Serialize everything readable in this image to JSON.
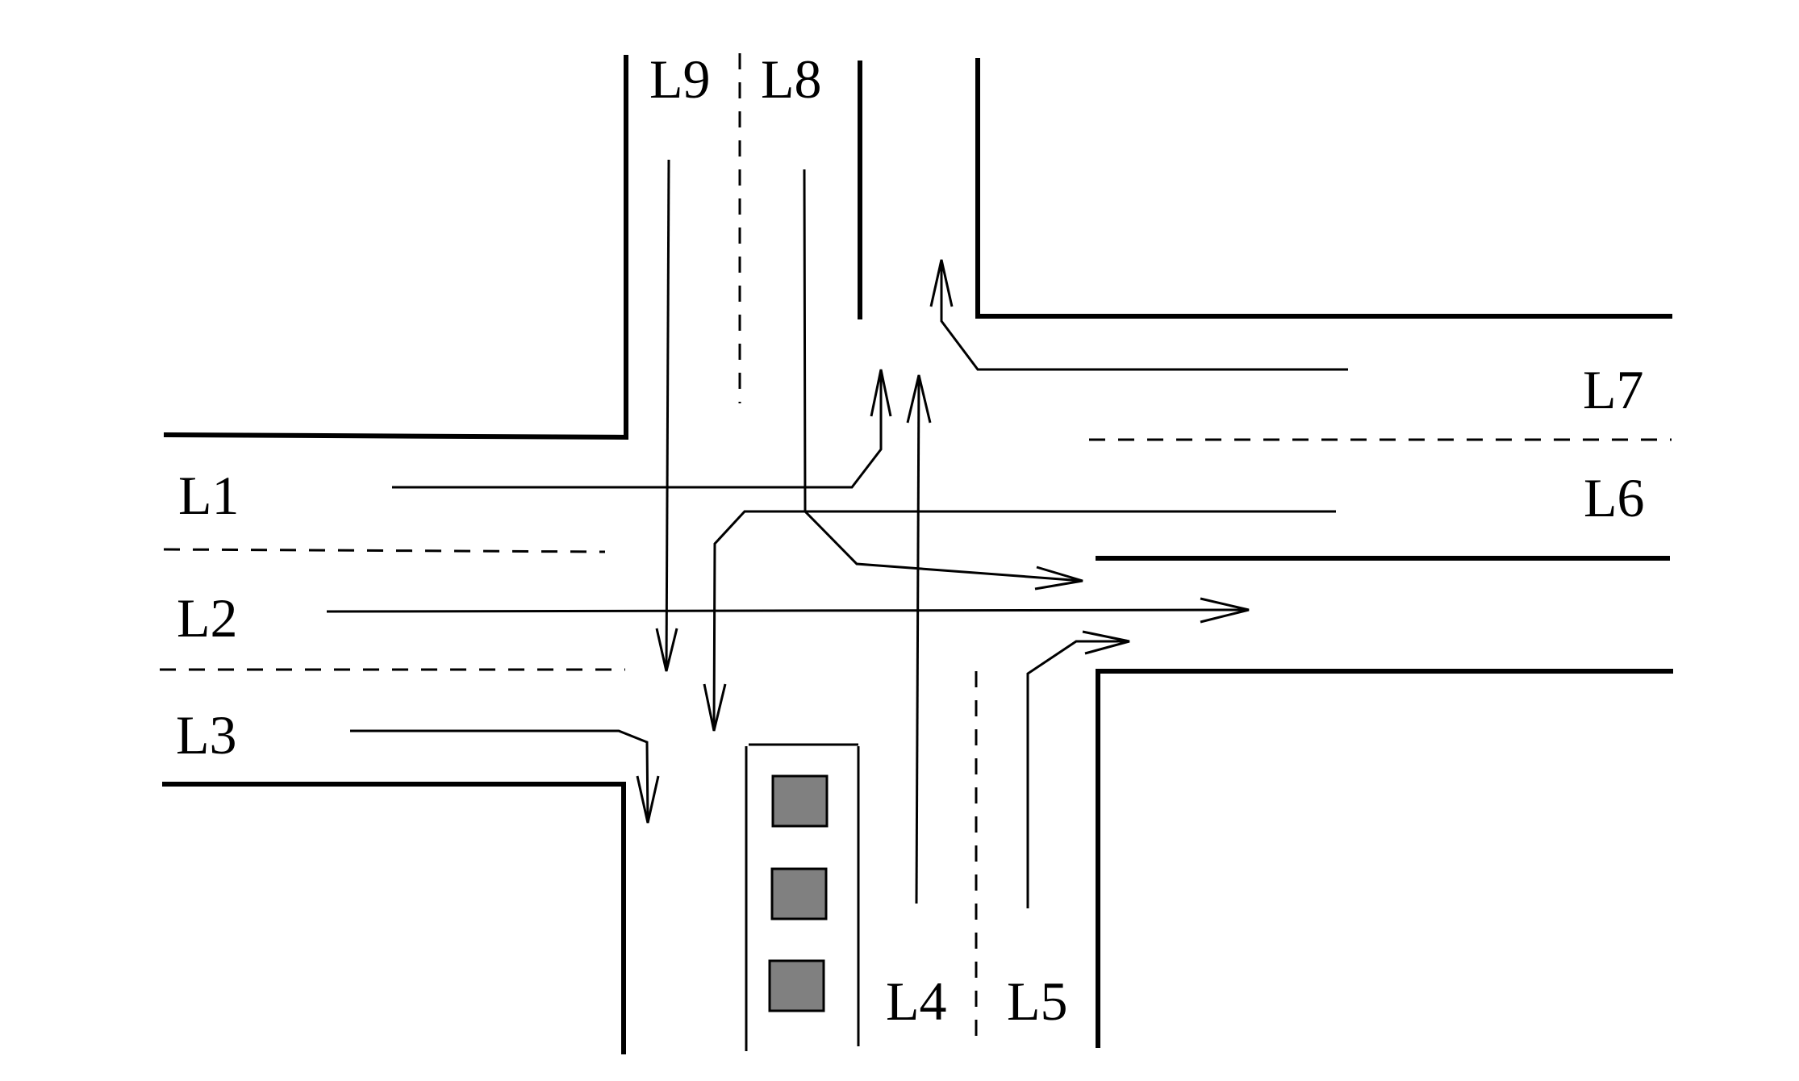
{
  "lanes": {
    "L1": "L1",
    "L2": "L2",
    "L3": "L3",
    "L4": "L4",
    "L5": "L5",
    "L6": "L6",
    "L7": "L7",
    "L8": "L8",
    "L9": "L9"
  },
  "queue": {
    "vehicle_count": 3,
    "vehicle_color": "#808080"
  }
}
